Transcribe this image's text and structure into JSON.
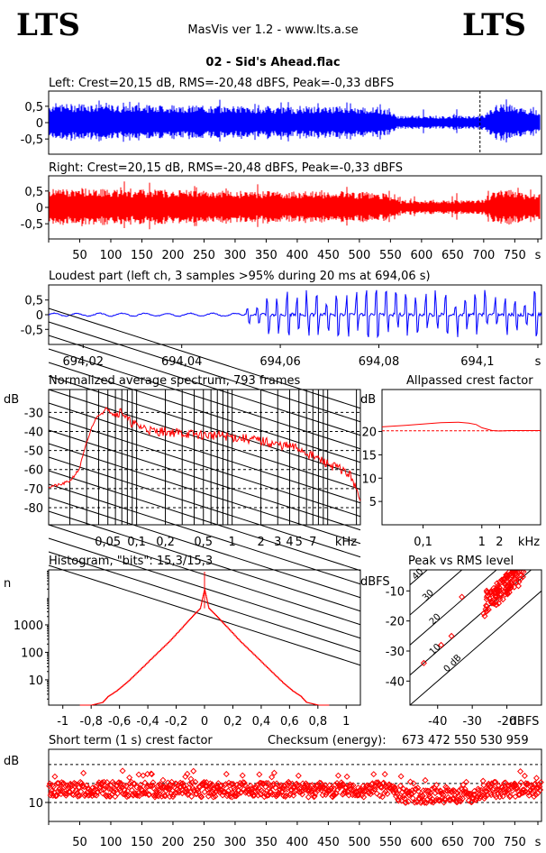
{
  "header": {
    "logo_left": "LTS",
    "logo_right": "LTS",
    "app_title": "MasVis ver 1.2 - www.lts.a.se",
    "file_title": "02 - Sid's Ahead.flac"
  },
  "colors": {
    "left": "#0000ff",
    "right": "#ff0000",
    "frame": "#000000"
  },
  "chart_data": [
    {
      "id": "left-waveform",
      "type": "area",
      "title": "Left: Crest=20,15 dB, RMS=-20,48 dBFS, Peak=-0,33 dBFS",
      "yticks": [
        "0,5",
        "0",
        "-0,5"
      ],
      "ylim": [
        -1,
        1
      ],
      "xlim": [
        0,
        793
      ],
      "envelope_pos": [
        0.62,
        0.64,
        0.63,
        0.66,
        0.64,
        0.62,
        0.6,
        0.58,
        0.62,
        0.6,
        0.61,
        0.58,
        0.6,
        0.57,
        0.59,
        0.55,
        0.58,
        0.56,
        0.57,
        0.53,
        0.56,
        0.54,
        0.54,
        0.53,
        0.55,
        0.53,
        0.56,
        0.54,
        0.5,
        0.52,
        0.51,
        0.45,
        0.22,
        0.24,
        0.23,
        0.24,
        0.23,
        0.25,
        0.24,
        0.23,
        0.3,
        0.62,
        0.64,
        0.5,
        0.44,
        0.45
      ],
      "annotation": {
        "marker_s": 694.06
      }
    },
    {
      "id": "right-waveform",
      "type": "area",
      "title": "Right: Crest=20,15 dB, RMS=-20,48 dBFS, Peak=-0,33 dBFS",
      "yticks": [
        "0,5",
        "0",
        "-0,5"
      ],
      "ylim": [
        -1,
        1
      ],
      "xlim": [
        0,
        793
      ],
      "envelope_pos": [
        0.62,
        0.64,
        0.63,
        0.66,
        0.64,
        0.62,
        0.6,
        0.58,
        0.62,
        0.6,
        0.61,
        0.58,
        0.6,
        0.57,
        0.59,
        0.55,
        0.58,
        0.56,
        0.57,
        0.53,
        0.56,
        0.54,
        0.54,
        0.53,
        0.55,
        0.53,
        0.56,
        0.54,
        0.5,
        0.52,
        0.51,
        0.45,
        0.22,
        0.24,
        0.23,
        0.24,
        0.23,
        0.25,
        0.24,
        0.23,
        0.3,
        0.62,
        0.64,
        0.5,
        0.44,
        0.45
      ],
      "xticks": [
        "50",
        "100",
        "150",
        "200",
        "250",
        "300",
        "350",
        "400",
        "450",
        "500",
        "550",
        "600",
        "650",
        "700",
        "750",
        "s"
      ]
    },
    {
      "id": "loudest-part",
      "type": "line",
      "title": "Loudest part (left  ch, 3 samples >95% during 20 ms at 694,06 s)",
      "yticks": [
        "0,5",
        "0",
        "-0,5"
      ],
      "ylim": [
        -1,
        1
      ],
      "xlim": [
        694.013,
        694.113
      ],
      "xticks": [
        "694,02",
        "694,04",
        "694,06",
        "694,08",
        "694,1",
        "s"
      ],
      "xtick_values": [
        694.02,
        694.04,
        694.06,
        694.08,
        694.1,
        694.11
      ]
    },
    {
      "id": "avg-spectrum",
      "type": "line",
      "title": "Normalized average spectrum, 793 frames",
      "ylabel": "dB",
      "yticks": [
        "-30",
        "-40",
        "-50",
        "-60",
        "-70",
        "-80"
      ],
      "ytick_values": [
        -30,
        -40,
        -50,
        -60,
        -70,
        -80
      ],
      "ylim": [
        -89,
        -18
      ],
      "xlabel": "kHz",
      "xticks": [
        "0,05",
        "0,1",
        "0,2",
        "0,5",
        "1",
        "2",
        "3",
        "4",
        "5",
        "7"
      ],
      "xtick_values": [
        0.05,
        0.1,
        0.2,
        0.5,
        1,
        2,
        3,
        4,
        5,
        7
      ],
      "xlim": [
        0.012,
        22
      ],
      "log_x": true,
      "series": [
        {
          "x": [
            0.012,
            0.016,
            0.02,
            0.025,
            0.03,
            0.035,
            0.04,
            0.045,
            0.05,
            0.06,
            0.07,
            0.08,
            0.1,
            0.12,
            0.15,
            0.2,
            0.3,
            0.5,
            0.7,
            1,
            1.5,
            2,
            3,
            4,
            5,
            7,
            10,
            14,
            18,
            22
          ],
          "y": [
            -69,
            -68,
            -66,
            -60,
            -46,
            -36,
            -31,
            -30,
            -27,
            -31,
            -29,
            -34,
            -37,
            -38,
            -40,
            -40,
            -41,
            -42,
            -42,
            -43,
            -44,
            -45,
            -47,
            -48,
            -49,
            -53,
            -57,
            -60,
            -64,
            -78
          ]
        }
      ]
    },
    {
      "id": "allpassed-crest",
      "type": "line",
      "title": "Allpassed crest factor",
      "ylabel": "dB",
      "yticks": [
        "20",
        "15",
        "10",
        "5"
      ],
      "ytick_values": [
        20,
        15,
        10,
        5
      ],
      "ylim": [
        0,
        29
      ],
      "xlabel": "kHz",
      "xticks": [
        "0,1",
        "1",
        "2"
      ],
      "xtick_values": [
        0.1,
        1,
        2
      ],
      "xlim": [
        0.02,
        10
      ],
      "log_x": true,
      "reference_db": 20.15,
      "series": [
        {
          "x": [
            0.02,
            0.05,
            0.1,
            0.2,
            0.4,
            0.6,
            0.8,
            1,
            1.5,
            2,
            3,
            5,
            10
          ],
          "y": [
            21,
            21.3,
            21.6,
            21.9,
            22,
            21.8,
            21.5,
            20.8,
            20.2,
            20.1,
            20.2,
            20.2,
            20.2
          ]
        }
      ]
    },
    {
      "id": "histogram",
      "type": "line",
      "title": "Histogram, \"bits\": 15,3/15,3",
      "ylabel": "n",
      "yticks": [
        "1000",
        "100",
        "10"
      ],
      "ytick_values": [
        1000,
        100,
        10
      ],
      "ylim": [
        1.2,
        100000
      ],
      "log_y": true,
      "xticks": [
        "-1",
        "-0,8",
        "-0,6",
        "-0,4",
        "-0,2",
        "0",
        "0,2",
        "0,4",
        "0,6",
        "0,8",
        "1"
      ],
      "xtick_values": [
        -1,
        -0.8,
        -0.6,
        -0.4,
        -0.2,
        0,
        0.2,
        0.4,
        0.6,
        0.8,
        1
      ],
      "xlim": [
        -1.1,
        1.1
      ],
      "series": [
        {
          "x": [
            -0.88,
            -0.8,
            -0.72,
            -0.68,
            -0.62,
            -0.55,
            -0.45,
            -0.35,
            -0.25,
            -0.15,
            -0.08,
            -0.03,
            0,
            0.03,
            0.08,
            0.15,
            0.25,
            0.35,
            0.45,
            0.55,
            0.62,
            0.68,
            0.72,
            0.8,
            0.88
          ],
          "y": [
            1.2,
            1.2,
            1.5,
            2.5,
            4,
            8,
            25,
            80,
            250,
            900,
            2200,
            4000,
            20000,
            4000,
            2200,
            900,
            250,
            80,
            25,
            8,
            4,
            2.5,
            1.5,
            1.2,
            1.2
          ]
        }
      ]
    },
    {
      "id": "peak-vs-rms",
      "type": "scatter",
      "title": "Peak vs RMS level",
      "ylabel": "dBFS",
      "yticks": [
        "-10",
        "-20",
        "-30",
        "-40"
      ],
      "ytick_values": [
        -10,
        -20,
        -30,
        -40
      ],
      "ylim": [
        -48,
        -3
      ],
      "xlabel": "dBFS",
      "xticks": [
        "-40",
        "-30",
        "-20"
      ],
      "xtick_values": [
        -40,
        -30,
        -20
      ],
      "xlim": [
        -48,
        -10
      ],
      "diagonal_labels": [
        "40",
        "30",
        "20",
        "10",
        "0 dB"
      ],
      "diagonal_values": [
        40,
        30,
        20,
        10,
        0
      ],
      "cluster": {
        "rms_range": [
          -27,
          -15
        ],
        "crest_range": [
          8,
          16
        ],
        "count": 120,
        "outliers": [
          [
            -33,
            -12
          ],
          [
            -44,
            -34
          ],
          [
            -39,
            -28
          ],
          [
            -36,
            -25
          ]
        ]
      }
    },
    {
      "id": "short-term-crest",
      "type": "scatter",
      "title": "Short term (1 s) crest factor",
      "ylabel": "dB",
      "yticks": [
        "10"
      ],
      "ytick_values": [
        10
      ],
      "ylim": [
        5,
        24
      ],
      "xlim": [
        0,
        793
      ],
      "xticks": [
        "50",
        "100",
        "150",
        "200",
        "250",
        "300",
        "350",
        "400",
        "450",
        "500",
        "550",
        "600",
        "650",
        "700",
        "750",
        "s"
      ],
      "checksum_label": "Checksum (energy):",
      "checksum_value": "673 472 550 530 959",
      "reference_lines": [
        10,
        15,
        20
      ]
    }
  ]
}
